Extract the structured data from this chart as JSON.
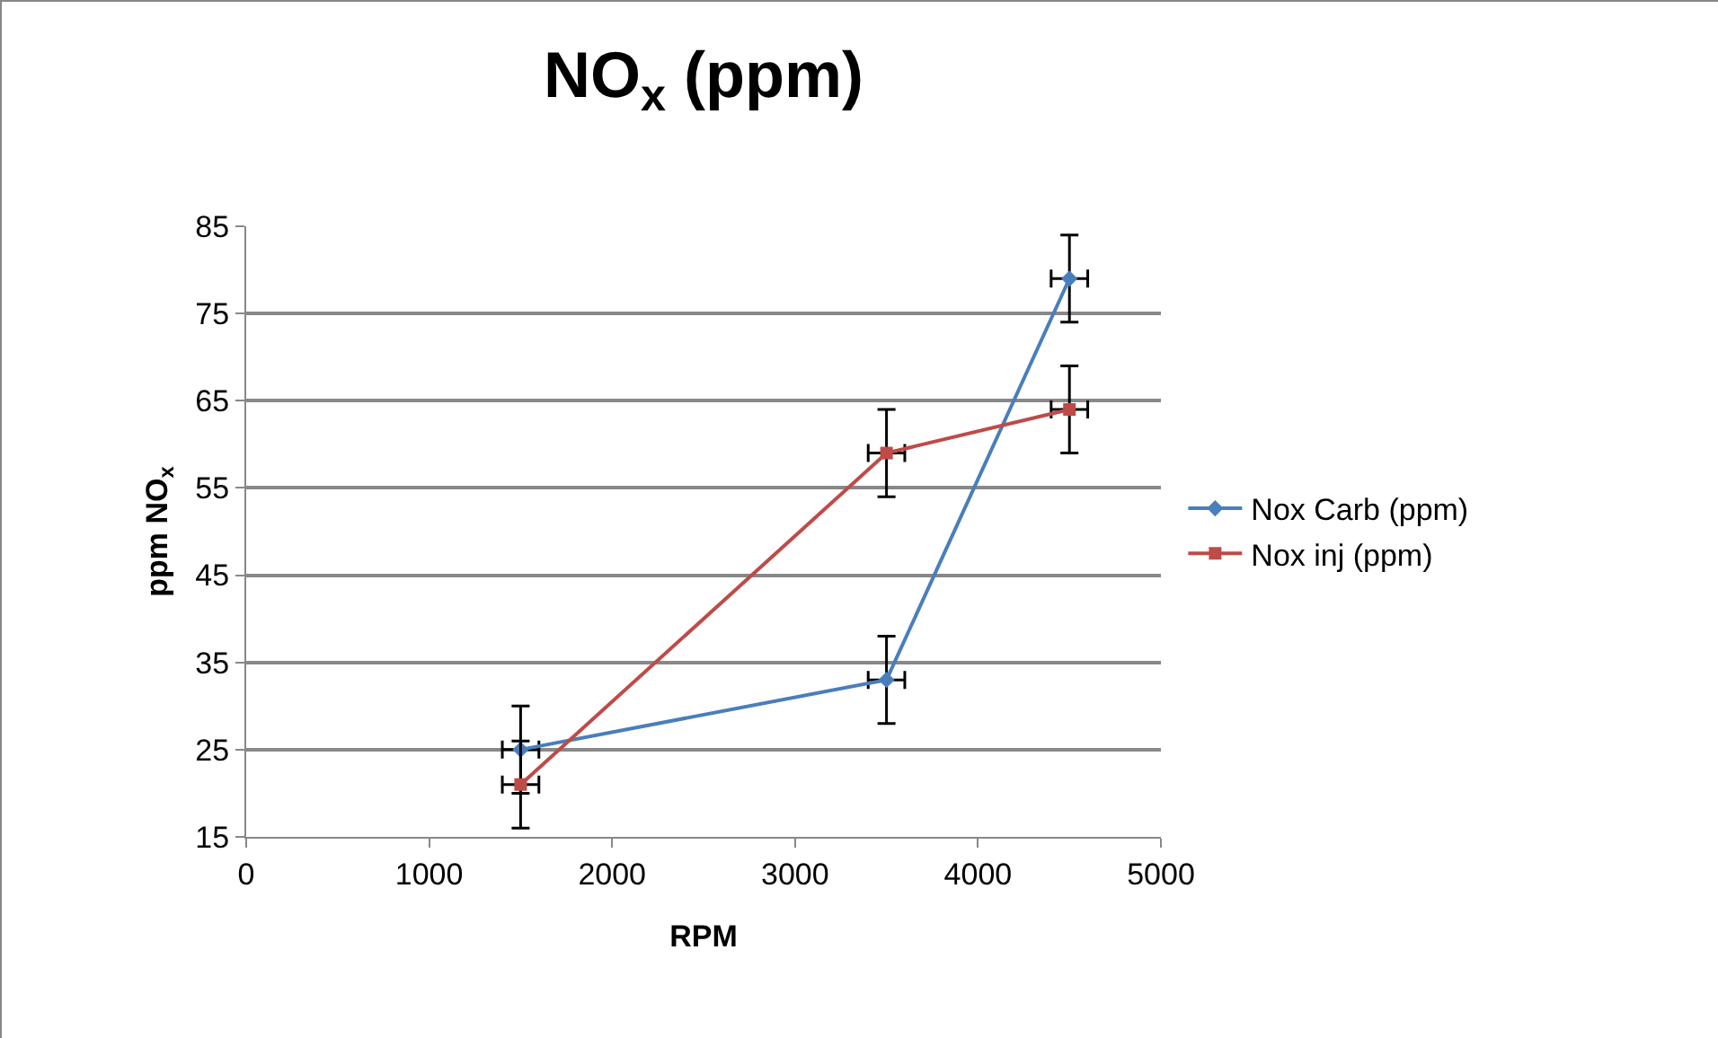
{
  "chart_data": {
    "type": "line",
    "title": "NO$_{x}$ (ppm)",
    "xlabel": "RPM",
    "ylabel": "ppm NO$_{x}$",
    "x": [
      1500,
      3500,
      4500
    ],
    "series": [
      {
        "name": "Nox Carb (ppm)",
        "color": "#4a7ebb",
        "marker": "diamond",
        "values": [
          25,
          33,
          79
        ],
        "errors": [
          5,
          5,
          5
        ],
        "xerrors": [
          100,
          100,
          100
        ]
      },
      {
        "name": "Nox inj (ppm)",
        "color": "#be4b48",
        "marker": "square",
        "values": [
          21,
          59,
          64
        ],
        "errors": [
          5,
          5,
          5
        ],
        "xerrors": [
          100,
          100,
          100
        ]
      }
    ],
    "xlim": [
      0,
      5000
    ],
    "xticks": [
      0,
      1000,
      2000,
      3000,
      4000,
      5000
    ],
    "ylim": [
      15,
      85
    ],
    "yticks": [
      15,
      25,
      35,
      45,
      55,
      65,
      75,
      85
    ],
    "grid": "y",
    "legend": "right"
  }
}
